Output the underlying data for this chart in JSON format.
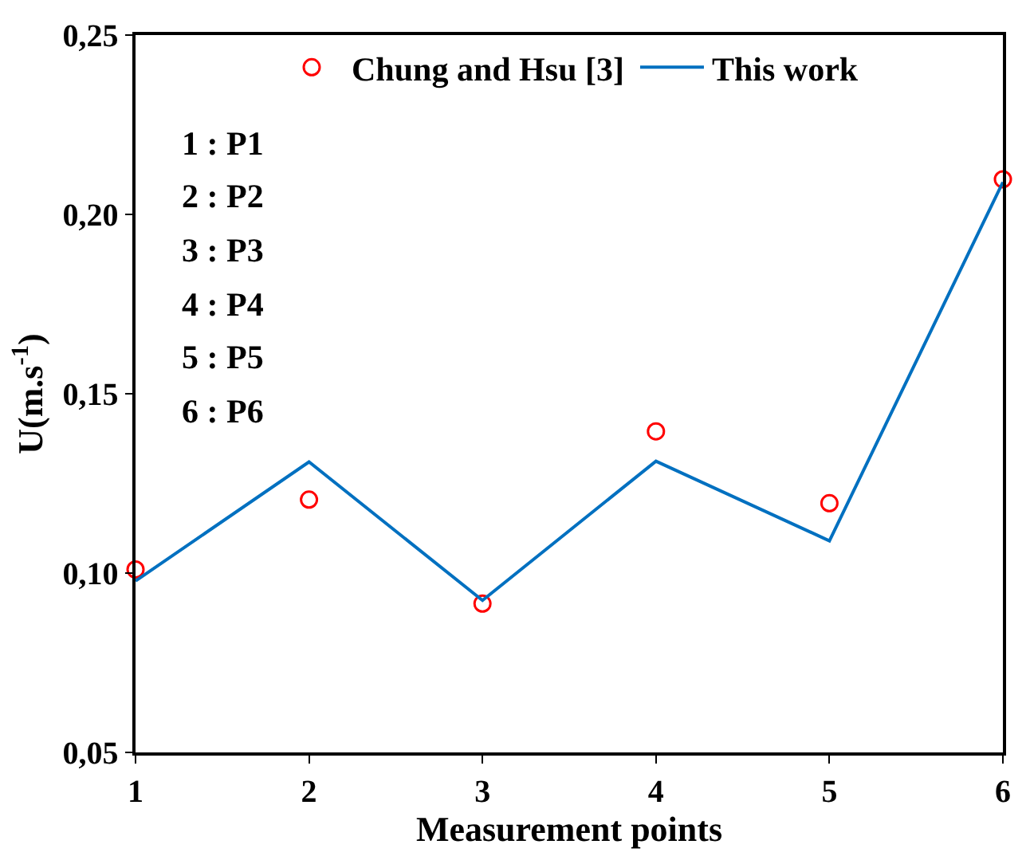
{
  "chart_data": {
    "type": "line",
    "xlabel": "Measurement points",
    "ylabel": "U(m.s$^{-1}$)",
    "x": [
      1,
      2,
      3,
      4,
      5,
      6
    ],
    "series": [
      {
        "name": "Chung and Hsu [3]",
        "type": "scatter",
        "marker": "circle",
        "color": "#ff0000",
        "values": [
          0.101,
          0.1205,
          0.0915,
          0.1395,
          0.1195,
          0.2098
        ]
      },
      {
        "name": "This work",
        "marker": "none",
        "line_style": "solid",
        "color": "#0070c0",
        "values": [
          0.0978,
          0.131,
          0.0924,
          0.1312,
          0.109,
          0.209
        ]
      }
    ],
    "xlim": [
      1,
      6
    ],
    "xticks": [
      1,
      2,
      3,
      4,
      5,
      6
    ],
    "ylim": [
      0.05,
      0.25
    ],
    "yticks": [
      {
        "value": 0.05,
        "label": "0,05"
      },
      {
        "value": 0.1,
        "label": "0,10"
      },
      {
        "value": 0.15,
        "label": "0,15"
      },
      {
        "value": 0.2,
        "label": "0,20"
      },
      {
        "value": 0.25,
        "label": "0,25"
      }
    ],
    "annotations": [
      "1 : P1",
      "2 : P2",
      "3 : P3",
      "4 : P4",
      "5 : P5",
      "6 : P6"
    ],
    "grid": false,
    "legend": "top"
  }
}
